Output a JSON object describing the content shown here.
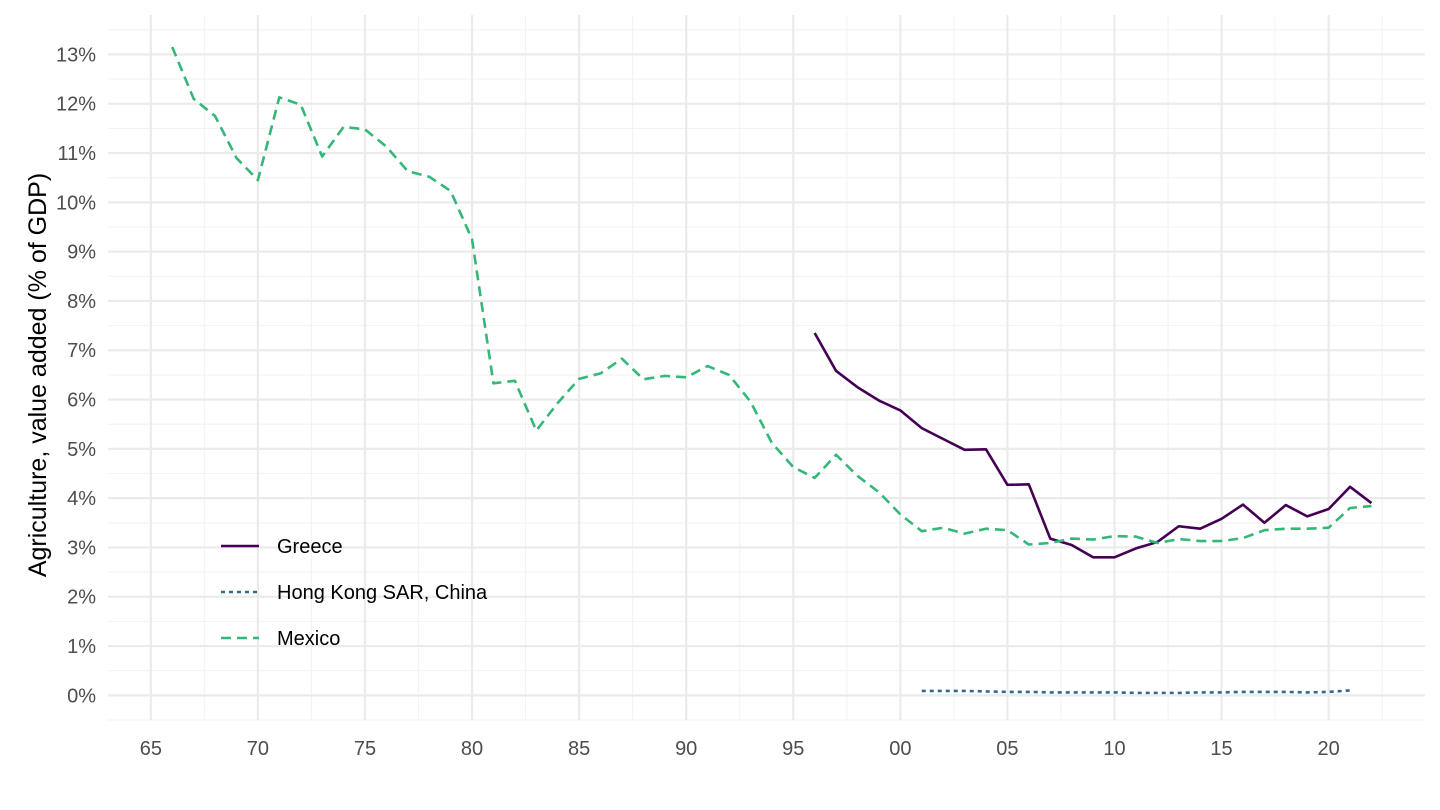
{
  "chart_data": {
    "type": "line",
    "ylabel": "Agriculture, value added (% of GDP)",
    "xlabel": "",
    "x_ticks": [
      {
        "year": 1965,
        "label": "65"
      },
      {
        "year": 1970,
        "label": "70"
      },
      {
        "year": 1975,
        "label": "75"
      },
      {
        "year": 1980,
        "label": "80"
      },
      {
        "year": 1985,
        "label": "85"
      },
      {
        "year": 1990,
        "label": "90"
      },
      {
        "year": 1995,
        "label": "95"
      },
      {
        "year": 2000,
        "label": "00"
      },
      {
        "year": 2005,
        "label": "05"
      },
      {
        "year": 2010,
        "label": "10"
      },
      {
        "year": 2015,
        "label": "15"
      },
      {
        "year": 2020,
        "label": "20"
      }
    ],
    "y_ticks": [
      {
        "value": 0,
        "label": "0%"
      },
      {
        "value": 1,
        "label": "1%"
      },
      {
        "value": 2,
        "label": "2%"
      },
      {
        "value": 3,
        "label": "3%"
      },
      {
        "value": 4,
        "label": "4%"
      },
      {
        "value": 5,
        "label": "5%"
      },
      {
        "value": 6,
        "label": "6%"
      },
      {
        "value": 7,
        "label": "7%"
      },
      {
        "value": 8,
        "label": "8%"
      },
      {
        "value": 9,
        "label": "9%"
      },
      {
        "value": 10,
        "label": "10%"
      },
      {
        "value": 11,
        "label": "11%"
      },
      {
        "value": 12,
        "label": "12%"
      },
      {
        "value": 13,
        "label": "13%"
      }
    ],
    "xlim": [
      1963,
      2024.5
    ],
    "ylim": [
      -0.5,
      13.8
    ],
    "grid": true,
    "legend_position": "bottom-left inside",
    "series": [
      {
        "name": "Greece",
        "color": "#440154",
        "dash": "solid",
        "x": [
          1996,
          1997,
          1998,
          1999,
          2000,
          2001,
          2002,
          2003,
          2004,
          2005,
          2006,
          2007,
          2008,
          2009,
          2010,
          2011,
          2012,
          2013,
          2014,
          2015,
          2016,
          2017,
          2018,
          2019,
          2020,
          2021,
          2022
        ],
        "y": [
          7.35,
          6.58,
          6.25,
          5.98,
          5.78,
          5.42,
          5.2,
          4.98,
          4.99,
          4.27,
          4.28,
          3.18,
          3.05,
          2.8,
          2.8,
          2.98,
          3.11,
          3.43,
          3.38,
          3.58,
          3.87,
          3.5,
          3.86,
          3.63,
          3.78,
          4.23,
          3.9
        ]
      },
      {
        "name": "Hong Kong SAR, China",
        "color": "#31688e",
        "dash": "dotted",
        "x": [
          2001,
          2002,
          2003,
          2004,
          2005,
          2006,
          2007,
          2008,
          2009,
          2010,
          2011,
          2012,
          2013,
          2014,
          2015,
          2016,
          2017,
          2018,
          2019,
          2020,
          2021
        ],
        "y": [
          0.09,
          0.09,
          0.09,
          0.08,
          0.07,
          0.07,
          0.06,
          0.06,
          0.06,
          0.06,
          0.05,
          0.05,
          0.05,
          0.06,
          0.06,
          0.07,
          0.07,
          0.07,
          0.06,
          0.07,
          0.1
        ]
      },
      {
        "name": "Mexico",
        "color": "#35b779",
        "dash": "dashed",
        "x": [
          1966,
          1967,
          1968,
          1969,
          1970,
          1971,
          1972,
          1973,
          1974,
          1975,
          1976,
          1977,
          1978,
          1979,
          1980,
          1981,
          1982,
          1983,
          1984,
          1985,
          1986,
          1987,
          1988,
          1989,
          1990,
          1991,
          1992,
          1993,
          1994,
          1995,
          1996,
          1997,
          1998,
          1999,
          2000,
          2001,
          2002,
          2003,
          2004,
          2005,
          2006,
          2007,
          2008,
          2009,
          2010,
          2011,
          2012,
          2013,
          2014,
          2015,
          2016,
          2017,
          2018,
          2019,
          2020,
          2021,
          2022
        ],
        "y": [
          13.15,
          12.1,
          11.75,
          10.9,
          10.45,
          12.13,
          11.98,
          10.93,
          11.53,
          11.48,
          11.13,
          10.63,
          10.52,
          10.23,
          9.25,
          6.33,
          6.38,
          5.37,
          5.93,
          6.42,
          6.53,
          6.83,
          6.41,
          6.48,
          6.45,
          6.68,
          6.5,
          5.96,
          5.12,
          4.63,
          4.41,
          4.88,
          4.45,
          4.12,
          3.67,
          3.33,
          3.4,
          3.28,
          3.38,
          3.35,
          3.06,
          3.09,
          3.18,
          3.16,
          3.23,
          3.22,
          3.09,
          3.17,
          3.13,
          3.13,
          3.19,
          3.35,
          3.38,
          3.38,
          3.4,
          3.8,
          3.84
        ]
      }
    ]
  }
}
